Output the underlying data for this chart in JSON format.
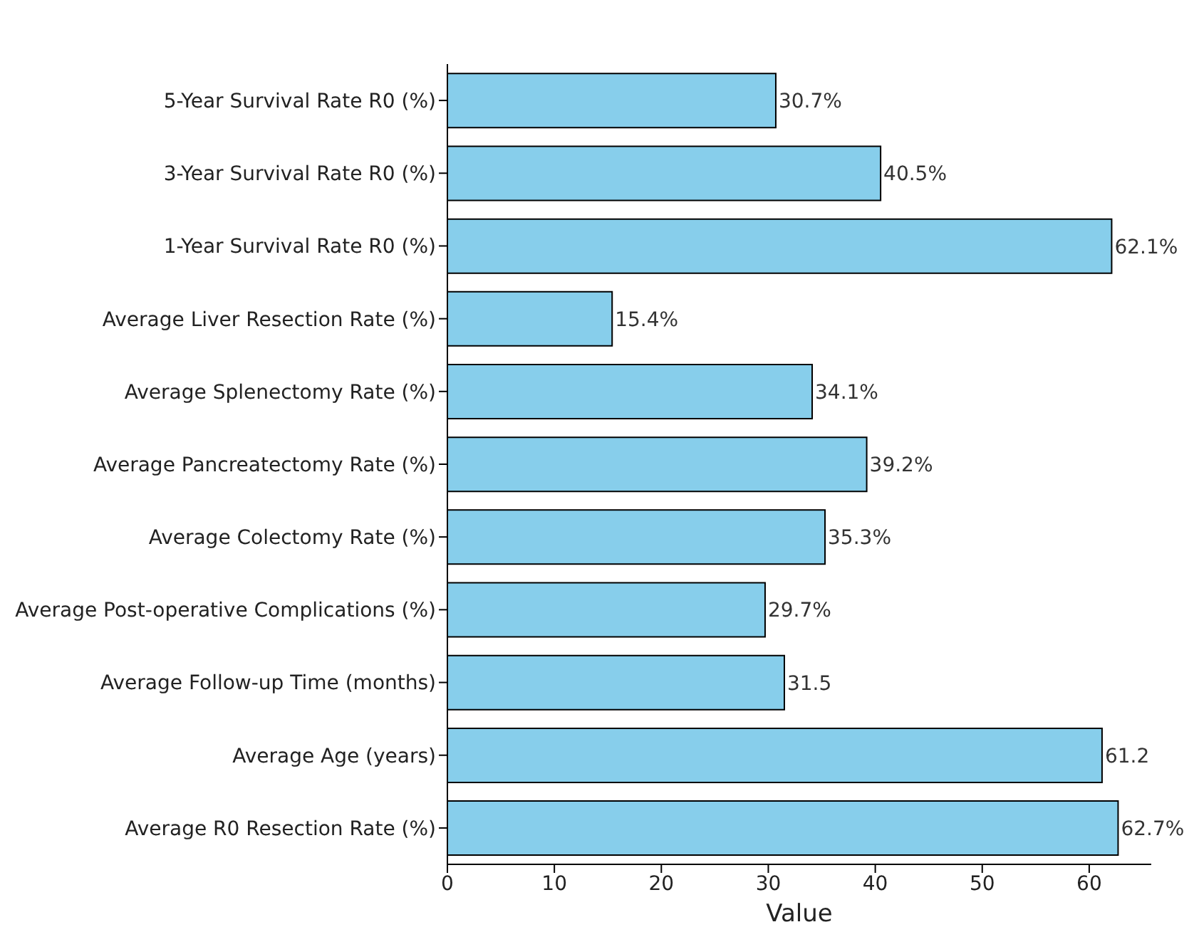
{
  "chart_data": {
    "type": "bar",
    "orientation": "horizontal",
    "xlabel": "Value",
    "categories": [
      "5-Year Survival Rate R0 (%)",
      "3-Year Survival Rate R0 (%)",
      "1-Year Survival Rate R0 (%)",
      "Average Liver Resection Rate (%)",
      "Average Splenectomy Rate (%)",
      "Average Pancreatectomy Rate (%)",
      "Average Colectomy Rate (%)",
      "Average Post-operative Complications (%)",
      "Average Follow-up Time (months)",
      "Average Age (years)",
      "Average R0 Resection Rate (%)"
    ],
    "values": [
      30.7,
      40.5,
      62.1,
      15.4,
      34.1,
      39.2,
      35.3,
      29.7,
      31.5,
      61.2,
      62.7
    ],
    "value_labels": [
      "30.7%",
      "40.5%",
      "62.1%",
      "15.4%",
      "34.1%",
      "39.2%",
      "35.3%",
      "29.7%",
      "31.5",
      "61.2",
      "62.7%"
    ],
    "color": "#87ceeb",
    "xlim": [
      0,
      65.8
    ],
    "xticks": [
      0,
      10,
      20,
      30,
      40,
      50,
      60
    ],
    "grid": false
  }
}
